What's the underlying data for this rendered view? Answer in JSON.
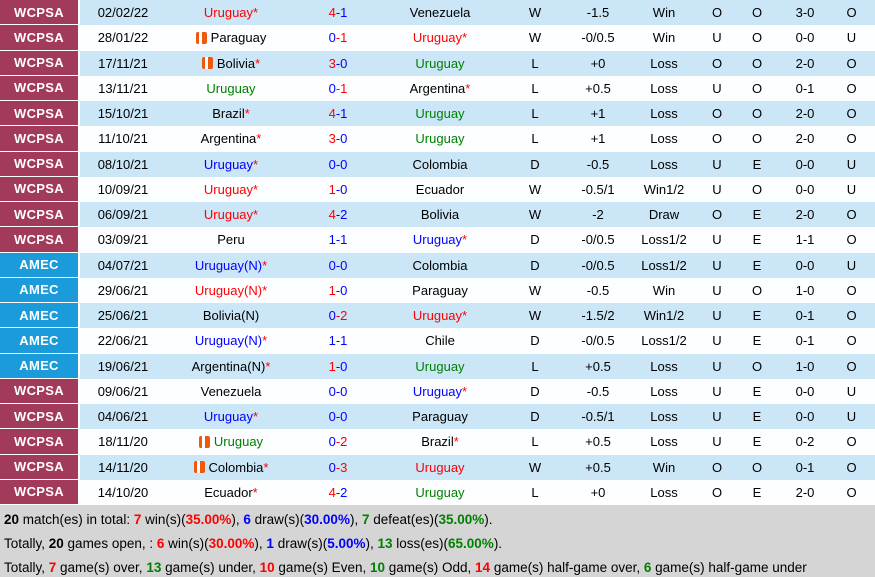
{
  "colors": {
    "league_wcpsa_bg": "#A23B59",
    "league_amec_bg": "#1C9BDB",
    "row_alt_bg": "#CBE6F7",
    "row_bg": "#FDFEFF",
    "summary_bg": "#D5D5D5",
    "win_red": "#FF0000",
    "loss_green": "#008000",
    "draw_blue": "#0000FF"
  },
  "icons": {
    "team_icon": "orange-club-badge"
  },
  "rows": [
    {
      "league": "WCPSA",
      "comp": "wc",
      "date": "02/02/22",
      "home": {
        "name": "Uruguay",
        "star": true,
        "color": "red",
        "icon": false
      },
      "score": {
        "h": "4",
        "a": "1",
        "hc": "red",
        "ac": "blue"
      },
      "away": {
        "name": "Venezuela",
        "star": false,
        "color": "black",
        "icon": false
      },
      "wdl": {
        "t": "W",
        "c": "red"
      },
      "hcap": "-1.5",
      "res": {
        "t": "Win",
        "c": "red"
      },
      "ou": {
        "t": "O",
        "c": "red"
      },
      "oe": {
        "t": "O",
        "c": "green"
      },
      "ht": "3-0",
      "ou2": {
        "t": "O",
        "c": "red"
      }
    },
    {
      "league": "WCPSA",
      "comp": "wc",
      "date": "28/01/22",
      "home": {
        "name": "Paraguay",
        "star": false,
        "color": "black",
        "icon": true
      },
      "score": {
        "h": "0",
        "a": "1",
        "hc": "blue",
        "ac": "red"
      },
      "away": {
        "name": "Uruguay",
        "star": true,
        "color": "red",
        "icon": false
      },
      "wdl": {
        "t": "W",
        "c": "red"
      },
      "hcap": "-0/0.5",
      "res": {
        "t": "Win",
        "c": "red"
      },
      "ou": {
        "t": "U",
        "c": "green"
      },
      "oe": {
        "t": "O",
        "c": "green"
      },
      "ht": "0-0",
      "ou2": {
        "t": "U",
        "c": "green"
      }
    },
    {
      "league": "WCPSA",
      "comp": "wc",
      "date": "17/11/21",
      "home": {
        "name": "Bolivia",
        "star": true,
        "color": "black",
        "icon": true
      },
      "score": {
        "h": "3",
        "a": "0",
        "hc": "red",
        "ac": "blue"
      },
      "away": {
        "name": "Uruguay",
        "star": false,
        "color": "green",
        "icon": false
      },
      "wdl": {
        "t": "L",
        "c": "green"
      },
      "hcap": "+0",
      "res": {
        "t": "Loss",
        "c": "green"
      },
      "ou": {
        "t": "O",
        "c": "red"
      },
      "oe": {
        "t": "O",
        "c": "green"
      },
      "ht": "2-0",
      "ou2": {
        "t": "O",
        "c": "red"
      }
    },
    {
      "league": "WCPSA",
      "comp": "wc",
      "date": "13/11/21",
      "home": {
        "name": "Uruguay",
        "star": false,
        "color": "green",
        "icon": false
      },
      "score": {
        "h": "0",
        "a": "1",
        "hc": "blue",
        "ac": "red"
      },
      "away": {
        "name": "Argentina",
        "star": true,
        "color": "black",
        "icon": false
      },
      "wdl": {
        "t": "L",
        "c": "green"
      },
      "hcap": "+0.5",
      "res": {
        "t": "Loss",
        "c": "green"
      },
      "ou": {
        "t": "U",
        "c": "green"
      },
      "oe": {
        "t": "O",
        "c": "green"
      },
      "ht": "0-1",
      "ou2": {
        "t": "O",
        "c": "red"
      }
    },
    {
      "league": "WCPSA",
      "comp": "wc",
      "date": "15/10/21",
      "home": {
        "name": "Brazil",
        "star": true,
        "color": "black",
        "icon": false
      },
      "score": {
        "h": "4",
        "a": "1",
        "hc": "red",
        "ac": "blue"
      },
      "away": {
        "name": "Uruguay",
        "star": false,
        "color": "green",
        "icon": false
      },
      "wdl": {
        "t": "L",
        "c": "green"
      },
      "hcap": "+1",
      "res": {
        "t": "Loss",
        "c": "green"
      },
      "ou": {
        "t": "O",
        "c": "red"
      },
      "oe": {
        "t": "O",
        "c": "green"
      },
      "ht": "2-0",
      "ou2": {
        "t": "O",
        "c": "red"
      }
    },
    {
      "league": "WCPSA",
      "comp": "wc",
      "date": "11/10/21",
      "home": {
        "name": "Argentina",
        "star": true,
        "color": "black",
        "icon": false
      },
      "score": {
        "h": "3",
        "a": "0",
        "hc": "red",
        "ac": "blue"
      },
      "away": {
        "name": "Uruguay",
        "star": false,
        "color": "green",
        "icon": false
      },
      "wdl": {
        "t": "L",
        "c": "green"
      },
      "hcap": "+1",
      "res": {
        "t": "Loss",
        "c": "green"
      },
      "ou": {
        "t": "O",
        "c": "red"
      },
      "oe": {
        "t": "O",
        "c": "green"
      },
      "ht": "2-0",
      "ou2": {
        "t": "O",
        "c": "red"
      }
    },
    {
      "league": "WCPSA",
      "comp": "wc",
      "date": "08/10/21",
      "home": {
        "name": "Uruguay",
        "star": true,
        "color": "blue",
        "icon": false
      },
      "score": {
        "h": "0",
        "a": "0",
        "hc": "blue",
        "ac": "blue"
      },
      "away": {
        "name": "Colombia",
        "star": false,
        "color": "black",
        "icon": false
      },
      "wdl": {
        "t": "D",
        "c": "blue"
      },
      "hcap": "-0.5",
      "res": {
        "t": "Loss",
        "c": "green"
      },
      "ou": {
        "t": "U",
        "c": "green"
      },
      "oe": {
        "t": "E",
        "c": "red"
      },
      "ht": "0-0",
      "ou2": {
        "t": "U",
        "c": "green"
      }
    },
    {
      "league": "WCPSA",
      "comp": "wc",
      "date": "10/09/21",
      "home": {
        "name": "Uruguay",
        "star": true,
        "color": "red",
        "icon": false
      },
      "score": {
        "h": "1",
        "a": "0",
        "hc": "red",
        "ac": "blue"
      },
      "away": {
        "name": "Ecuador",
        "star": false,
        "color": "black",
        "icon": false
      },
      "wdl": {
        "t": "W",
        "c": "red"
      },
      "hcap": "-0.5/1",
      "res": {
        "t": "Win1/2",
        "c": "red"
      },
      "ou": {
        "t": "U",
        "c": "green"
      },
      "oe": {
        "t": "O",
        "c": "green"
      },
      "ht": "0-0",
      "ou2": {
        "t": "U",
        "c": "green"
      }
    },
    {
      "league": "WCPSA",
      "comp": "wc",
      "date": "06/09/21",
      "home": {
        "name": "Uruguay",
        "star": true,
        "color": "red",
        "icon": false
      },
      "score": {
        "h": "4",
        "a": "2",
        "hc": "red",
        "ac": "blue"
      },
      "away": {
        "name": "Bolivia",
        "star": false,
        "color": "black",
        "icon": false
      },
      "wdl": {
        "t": "W",
        "c": "red"
      },
      "hcap": "-2",
      "res": {
        "t": "Draw",
        "c": "blue"
      },
      "ou": {
        "t": "O",
        "c": "red"
      },
      "oe": {
        "t": "E",
        "c": "red"
      },
      "ht": "2-0",
      "ou2": {
        "t": "O",
        "c": "red"
      }
    },
    {
      "league": "WCPSA",
      "comp": "wc",
      "date": "03/09/21",
      "home": {
        "name": "Peru",
        "star": false,
        "color": "black",
        "icon": false
      },
      "score": {
        "h": "1",
        "a": "1",
        "hc": "blue",
        "ac": "blue"
      },
      "away": {
        "name": "Uruguay",
        "star": true,
        "color": "blue",
        "icon": false
      },
      "wdl": {
        "t": "D",
        "c": "blue"
      },
      "hcap": "-0/0.5",
      "res": {
        "t": "Loss1/2",
        "c": "green"
      },
      "ou": {
        "t": "U",
        "c": "green"
      },
      "oe": {
        "t": "E",
        "c": "red"
      },
      "ht": "1-1",
      "ou2": {
        "t": "O",
        "c": "red"
      }
    },
    {
      "league": "AMEC",
      "comp": "amec",
      "date": "04/07/21",
      "home": {
        "name": "Uruguay(N)",
        "star": true,
        "color": "blue",
        "icon": false
      },
      "score": {
        "h": "0",
        "a": "0",
        "hc": "blue",
        "ac": "blue"
      },
      "away": {
        "name": "Colombia",
        "star": false,
        "color": "black",
        "icon": false
      },
      "wdl": {
        "t": "D",
        "c": "blue"
      },
      "hcap": "-0/0.5",
      "res": {
        "t": "Loss1/2",
        "c": "green"
      },
      "ou": {
        "t": "U",
        "c": "green"
      },
      "oe": {
        "t": "E",
        "c": "red"
      },
      "ht": "0-0",
      "ou2": {
        "t": "U",
        "c": "green"
      }
    },
    {
      "league": "AMEC",
      "comp": "amec",
      "date": "29/06/21",
      "home": {
        "name": "Uruguay(N)",
        "star": true,
        "color": "red",
        "icon": false
      },
      "score": {
        "h": "1",
        "a": "0",
        "hc": "red",
        "ac": "blue"
      },
      "away": {
        "name": "Paraguay",
        "star": false,
        "color": "black",
        "icon": false
      },
      "wdl": {
        "t": "W",
        "c": "red"
      },
      "hcap": "-0.5",
      "res": {
        "t": "Win",
        "c": "red"
      },
      "ou": {
        "t": "U",
        "c": "green"
      },
      "oe": {
        "t": "O",
        "c": "green"
      },
      "ht": "1-0",
      "ou2": {
        "t": "O",
        "c": "red"
      }
    },
    {
      "league": "AMEC",
      "comp": "amec",
      "date": "25/06/21",
      "home": {
        "name": "Bolivia(N)",
        "star": false,
        "color": "black",
        "icon": false
      },
      "score": {
        "h": "0",
        "a": "2",
        "hc": "blue",
        "ac": "red"
      },
      "away": {
        "name": "Uruguay",
        "star": true,
        "color": "red",
        "icon": false
      },
      "wdl": {
        "t": "W",
        "c": "red"
      },
      "hcap": "-1.5/2",
      "res": {
        "t": "Win1/2",
        "c": "red"
      },
      "ou": {
        "t": "U",
        "c": "green"
      },
      "oe": {
        "t": "E",
        "c": "red"
      },
      "ht": "0-1",
      "ou2": {
        "t": "O",
        "c": "red"
      }
    },
    {
      "league": "AMEC",
      "comp": "amec",
      "date": "22/06/21",
      "home": {
        "name": "Uruguay(N)",
        "star": true,
        "color": "blue",
        "icon": false
      },
      "score": {
        "h": "1",
        "a": "1",
        "hc": "blue",
        "ac": "blue"
      },
      "away": {
        "name": "Chile",
        "star": false,
        "color": "black",
        "icon": false
      },
      "wdl": {
        "t": "D",
        "c": "blue"
      },
      "hcap": "-0/0.5",
      "res": {
        "t": "Loss1/2",
        "c": "green"
      },
      "ou": {
        "t": "U",
        "c": "green"
      },
      "oe": {
        "t": "E",
        "c": "red"
      },
      "ht": "0-1",
      "ou2": {
        "t": "O",
        "c": "red"
      }
    },
    {
      "league": "AMEC",
      "comp": "amec",
      "date": "19/06/21",
      "home": {
        "name": "Argentina(N)",
        "star": true,
        "color": "black",
        "icon": false
      },
      "score": {
        "h": "1",
        "a": "0",
        "hc": "red",
        "ac": "blue"
      },
      "away": {
        "name": "Uruguay",
        "star": false,
        "color": "green",
        "icon": false
      },
      "wdl": {
        "t": "L",
        "c": "green"
      },
      "hcap": "+0.5",
      "res": {
        "t": "Loss",
        "c": "green"
      },
      "ou": {
        "t": "U",
        "c": "green"
      },
      "oe": {
        "t": "O",
        "c": "green"
      },
      "ht": "1-0",
      "ou2": {
        "t": "O",
        "c": "red"
      }
    },
    {
      "league": "WCPSA",
      "comp": "wc",
      "date": "09/06/21",
      "home": {
        "name": "Venezuela",
        "star": false,
        "color": "black",
        "icon": false
      },
      "score": {
        "h": "0",
        "a": "0",
        "hc": "blue",
        "ac": "blue"
      },
      "away": {
        "name": "Uruguay",
        "star": true,
        "color": "blue",
        "icon": false
      },
      "wdl": {
        "t": "D",
        "c": "blue"
      },
      "hcap": "-0.5",
      "res": {
        "t": "Loss",
        "c": "green"
      },
      "ou": {
        "t": "U",
        "c": "green"
      },
      "oe": {
        "t": "E",
        "c": "red"
      },
      "ht": "0-0",
      "ou2": {
        "t": "U",
        "c": "green"
      }
    },
    {
      "league": "WCPSA",
      "comp": "wc",
      "date": "04/06/21",
      "home": {
        "name": "Uruguay",
        "star": true,
        "color": "blue",
        "icon": false
      },
      "score": {
        "h": "0",
        "a": "0",
        "hc": "blue",
        "ac": "blue"
      },
      "away": {
        "name": "Paraguay",
        "star": false,
        "color": "black",
        "icon": false
      },
      "wdl": {
        "t": "D",
        "c": "blue"
      },
      "hcap": "-0.5/1",
      "res": {
        "t": "Loss",
        "c": "green"
      },
      "ou": {
        "t": "U",
        "c": "green"
      },
      "oe": {
        "t": "E",
        "c": "red"
      },
      "ht": "0-0",
      "ou2": {
        "t": "U",
        "c": "green"
      }
    },
    {
      "league": "WCPSA",
      "comp": "wc",
      "date": "18/11/20",
      "home": {
        "name": "Uruguay",
        "star": false,
        "color": "green",
        "icon": true
      },
      "score": {
        "h": "0",
        "a": "2",
        "hc": "blue",
        "ac": "red"
      },
      "away": {
        "name": "Brazil",
        "star": true,
        "color": "black",
        "icon": false
      },
      "wdl": {
        "t": "L",
        "c": "green"
      },
      "hcap": "+0.5",
      "res": {
        "t": "Loss",
        "c": "green"
      },
      "ou": {
        "t": "U",
        "c": "green"
      },
      "oe": {
        "t": "E",
        "c": "red"
      },
      "ht": "0-2",
      "ou2": {
        "t": "O",
        "c": "red"
      }
    },
    {
      "league": "WCPSA",
      "comp": "wc",
      "date": "14/11/20",
      "home": {
        "name": "Colombia",
        "star": true,
        "color": "black",
        "icon": true
      },
      "score": {
        "h": "0",
        "a": "3",
        "hc": "blue",
        "ac": "red"
      },
      "away": {
        "name": "Uruguay",
        "star": false,
        "color": "red",
        "icon": false
      },
      "wdl": {
        "t": "W",
        "c": "red"
      },
      "hcap": "+0.5",
      "res": {
        "t": "Win",
        "c": "red"
      },
      "ou": {
        "t": "O",
        "c": "red"
      },
      "oe": {
        "t": "O",
        "c": "green"
      },
      "ht": "0-1",
      "ou2": {
        "t": "O",
        "c": "red"
      }
    },
    {
      "league": "WCPSA",
      "comp": "wc",
      "date": "14/10/20",
      "home": {
        "name": "Ecuador",
        "star": true,
        "color": "black",
        "icon": false
      },
      "score": {
        "h": "4",
        "a": "2",
        "hc": "red",
        "ac": "blue"
      },
      "away": {
        "name": "Uruguay",
        "star": false,
        "color": "green",
        "icon": false
      },
      "wdl": {
        "t": "L",
        "c": "green"
      },
      "hcap": "+0",
      "res": {
        "t": "Loss",
        "c": "green"
      },
      "ou": {
        "t": "O",
        "c": "red"
      },
      "oe": {
        "t": "E",
        "c": "red"
      },
      "ht": "2-0",
      "ou2": {
        "t": "O",
        "c": "red"
      }
    }
  ],
  "summary": {
    "line1": [
      {
        "t": "20",
        "c": "black",
        "b": true
      },
      {
        "t": " match(es) in total: "
      },
      {
        "t": "7",
        "c": "red",
        "b": true
      },
      {
        "t": " win(s)("
      },
      {
        "t": "35.00%",
        "c": "red",
        "b": true
      },
      {
        "t": "), "
      },
      {
        "t": "6",
        "c": "blue",
        "b": true
      },
      {
        "t": " draw(s)("
      },
      {
        "t": "30.00%",
        "c": "blue",
        "b": true
      },
      {
        "t": "), "
      },
      {
        "t": "7",
        "c": "green",
        "b": true
      },
      {
        "t": " defeat(es)("
      },
      {
        "t": "35.00%",
        "c": "green",
        "b": true
      },
      {
        "t": ")."
      }
    ],
    "line2": [
      {
        "t": "Totally, "
      },
      {
        "t": "20",
        "c": "black",
        "b": true
      },
      {
        "t": " games open, : "
      },
      {
        "t": "6",
        "c": "red",
        "b": true
      },
      {
        "t": " win(s)("
      },
      {
        "t": "30.00%",
        "c": "red",
        "b": true
      },
      {
        "t": "), "
      },
      {
        "t": "1",
        "c": "blue",
        "b": true
      },
      {
        "t": " draw(s)("
      },
      {
        "t": "5.00%",
        "c": "blue",
        "b": true
      },
      {
        "t": "), "
      },
      {
        "t": "13",
        "c": "green",
        "b": true
      },
      {
        "t": " loss(es)("
      },
      {
        "t": "65.00%",
        "c": "green",
        "b": true
      },
      {
        "t": ")."
      }
    ],
    "line3": [
      {
        "t": "Totally, "
      },
      {
        "t": "7",
        "c": "red",
        "b": true
      },
      {
        "t": " game(s) over, "
      },
      {
        "t": "13",
        "c": "green",
        "b": true
      },
      {
        "t": " game(s) under, "
      },
      {
        "t": "10",
        "c": "red",
        "b": true
      },
      {
        "t": " game(s) Even, "
      },
      {
        "t": "10",
        "c": "green",
        "b": true
      },
      {
        "t": " game(s) Odd, "
      },
      {
        "t": "14",
        "c": "red",
        "b": true
      },
      {
        "t": " game(s) half-game over, "
      },
      {
        "t": "6",
        "c": "green",
        "b": true
      },
      {
        "t": " game(s) half-game under"
      }
    ]
  }
}
